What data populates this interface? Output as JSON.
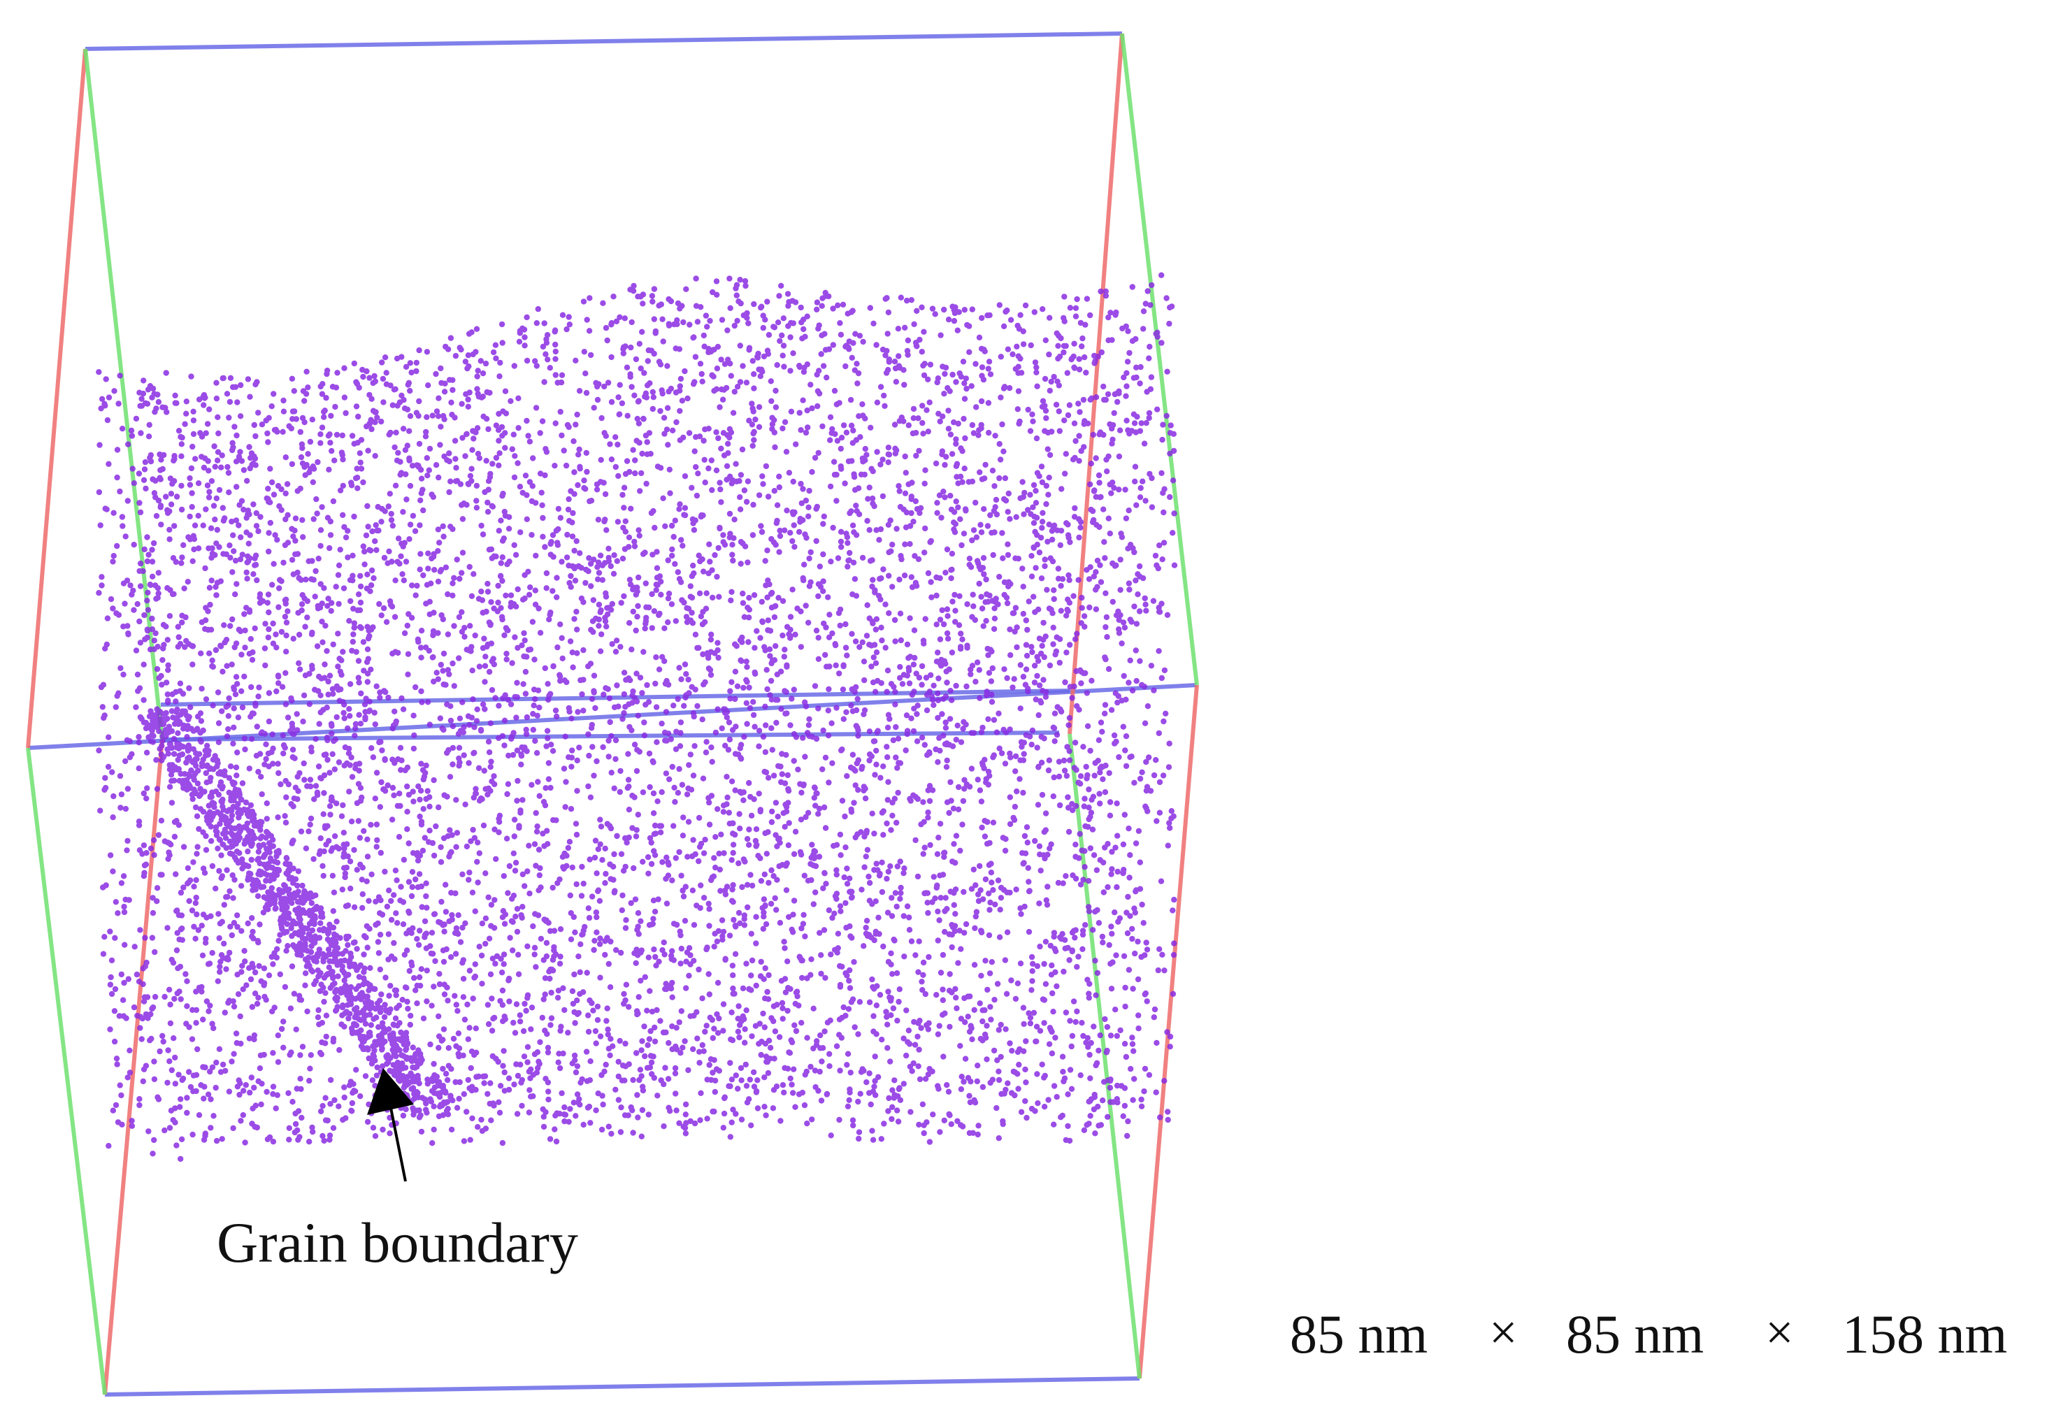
{
  "annotation": {
    "label": "Grain boundary"
  },
  "dimensions": {
    "x": "85 nm",
    "y": "85 nm",
    "z": "158 nm",
    "separator": "×"
  },
  "colors": {
    "atoms": "#8a2be2",
    "box_edge_x": "#6a6ae8",
    "box_edge_y": "#ee6b6b",
    "box_edge_z": "#6ee06e",
    "arrow": "#000000",
    "text": "#111111"
  }
}
